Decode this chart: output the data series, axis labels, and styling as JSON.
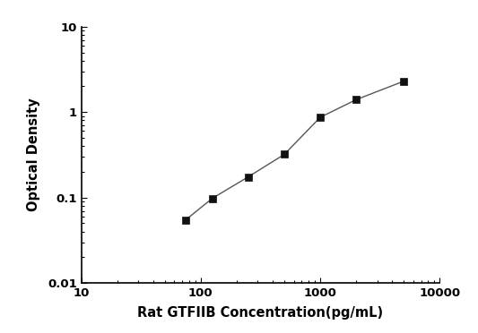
{
  "x": [
    75,
    125,
    250,
    500,
    1000,
    2000,
    5000
  ],
  "y": [
    0.055,
    0.098,
    0.175,
    0.32,
    0.87,
    1.4,
    2.3
  ],
  "xlim": [
    10,
    10000
  ],
  "ylim": [
    0.01,
    10
  ],
  "xlabel": "Rat GTFIIB Concentration(pg/mL)",
  "ylabel": "Optical Density",
  "line_color": "#555555",
  "marker": "s",
  "marker_color": "#111111",
  "marker_size": 6,
  "background_color": "#ffffff",
  "xticks": [
    10,
    100,
    1000,
    10000
  ],
  "xtick_labels": [
    "10",
    "100",
    "1000",
    "10000"
  ],
  "yticks": [
    0.01,
    0.1,
    1,
    10
  ],
  "ytick_labels": [
    "0.01",
    "0.1",
    "1",
    "10"
  ]
}
